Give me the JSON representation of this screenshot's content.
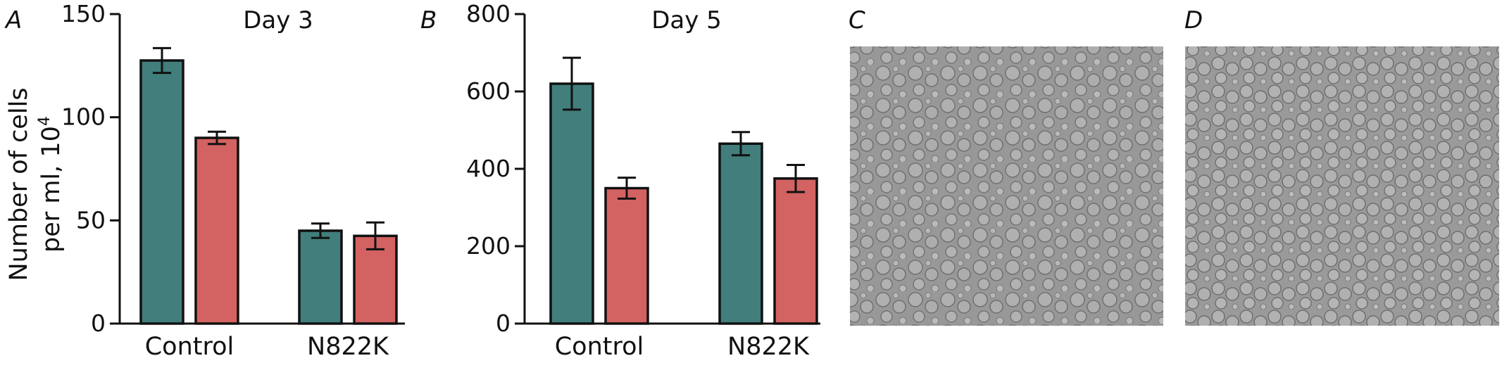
{
  "figure": {
    "ylabel_line1": "Number of cells",
    "ylabel_line2": "per ml, 10",
    "ylabel_sup": "4",
    "colors": {
      "series1": "#417e7c",
      "series2": "#d36262",
      "axis": "#111111"
    }
  },
  "chart_data": [
    {
      "type": "bar",
      "panel": "A",
      "title": "Day 3",
      "categories": [
        "Control",
        "N822K"
      ],
      "series": [
        {
          "values": [
            127.5,
            45
          ],
          "errors": [
            6,
            3.5
          ],
          "color": "#417e7c"
        },
        {
          "values": [
            90,
            42.5
          ],
          "errors": [
            3,
            6.5
          ],
          "color": "#d36262"
        }
      ],
      "ylim": [
        0,
        150
      ],
      "yticks": [
        0,
        50,
        100,
        150
      ],
      "ylabel": "Number of cells per ml, 10^4",
      "grid": false
    },
    {
      "type": "bar",
      "panel": "B",
      "title": "Day 5",
      "categories": [
        "Control",
        "N822K"
      ],
      "series": [
        {
          "values": [
            620,
            465
          ],
          "errors": [
            67,
            30
          ],
          "color": "#417e7c"
        },
        {
          "values": [
            350,
            375
          ],
          "errors": [
            27,
            35
          ],
          "color": "#d36262"
        }
      ],
      "ylim": [
        0,
        800
      ],
      "yticks": [
        0,
        200,
        400,
        600,
        800
      ],
      "grid": false
    }
  ],
  "photos": [
    {
      "panel": "C"
    },
    {
      "panel": "D"
    }
  ]
}
